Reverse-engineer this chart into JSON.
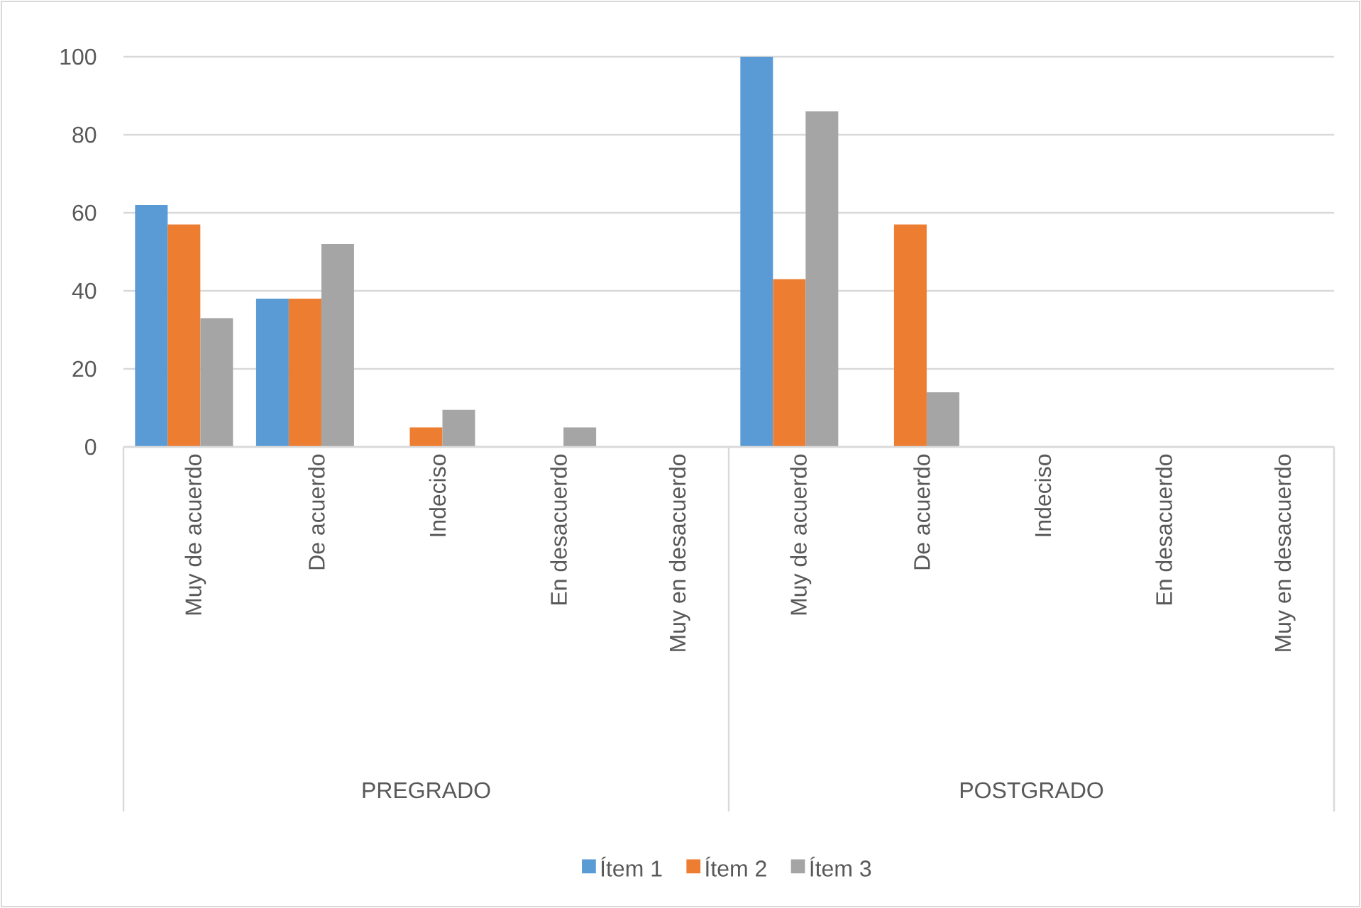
{
  "chart_data": {
    "type": "bar",
    "categories": [
      "Muy de acuerdo",
      "De acuerdo",
      "Indeciso",
      "En desacuerdo",
      "Muy en desacuerdo",
      "Muy de acuerdo",
      "De acuerdo",
      "Indeciso",
      "En desacuerdo",
      "Muy en desacuerdo"
    ],
    "annotations": [
      "PREGRADO",
      "POSTGRADO"
    ],
    "series": [
      {
        "name": "Ítem 1",
        "color": "#5b9bd5",
        "values": [
          62,
          38,
          0,
          0,
          0,
          100,
          0,
          0,
          0,
          0
        ]
      },
      {
        "name": "Ítem 2",
        "color": "#ed7d31",
        "values": [
          57,
          38,
          5,
          0,
          0,
          43,
          57,
          0,
          0,
          0
        ]
      },
      {
        "name": "Ítem 3",
        "color": "#a5a5a5",
        "values": [
          33,
          52,
          9.5,
          5,
          0,
          86,
          14,
          0,
          0,
          0
        ]
      }
    ],
    "ylim": [
      0,
      100
    ],
    "yticks": [
      0,
      20,
      40,
      60,
      80,
      100
    ],
    "grid": "y",
    "legend": "bottom"
  }
}
